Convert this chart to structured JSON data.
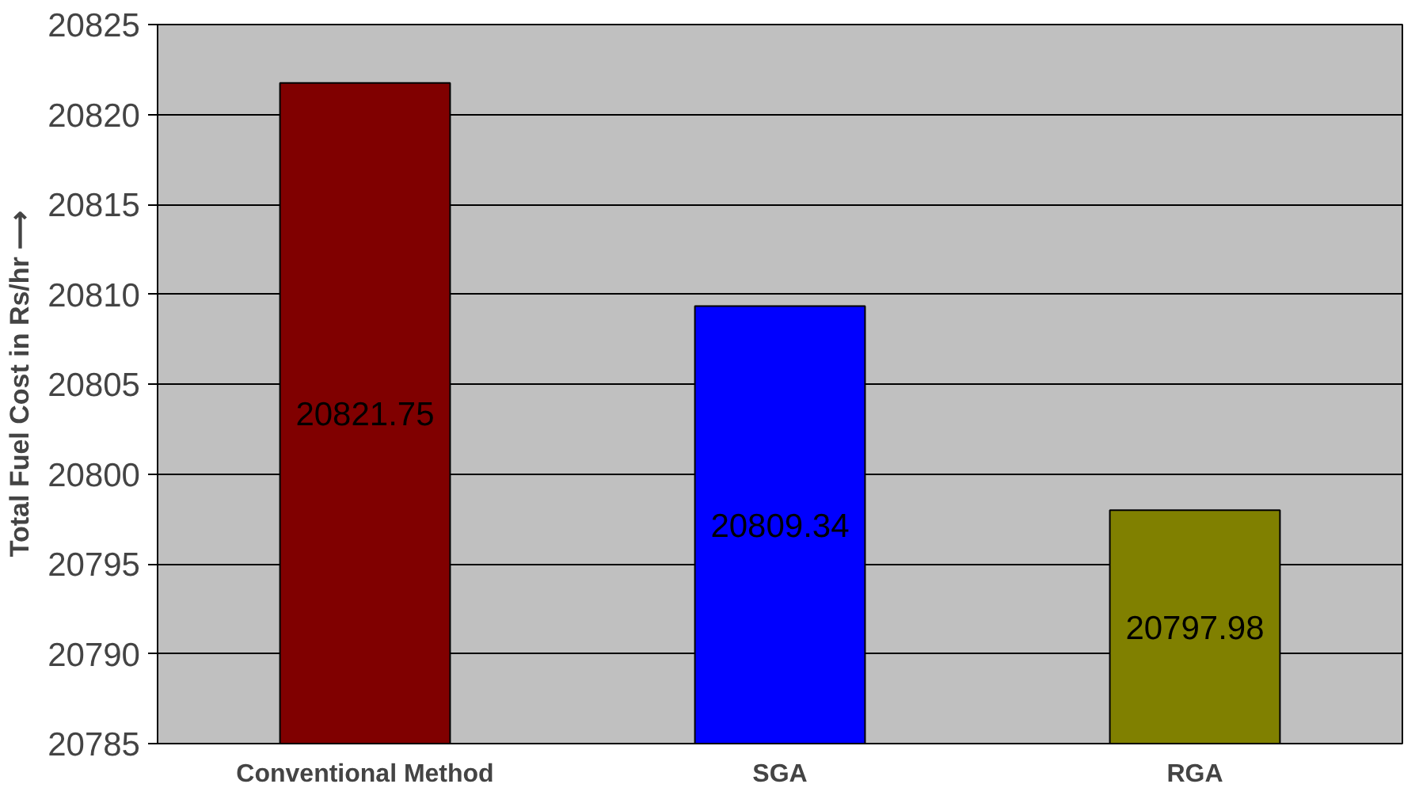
{
  "chart_data": {
    "type": "bar",
    "ylabel": "Total Fuel Cost in Rs/hr ⟶",
    "categories": [
      "Conventional Method",
      "SGA",
      "RGA"
    ],
    "values": [
      20821.75,
      20809.34,
      20797.98
    ],
    "colors": [
      "#800000",
      "#0000ff",
      "#808000"
    ],
    "ylim": [
      20785,
      20825
    ],
    "yticks": [
      20785,
      20790,
      20795,
      20800,
      20805,
      20810,
      20815,
      20820,
      20825
    ],
    "grid": "y",
    "data_labels": true
  }
}
